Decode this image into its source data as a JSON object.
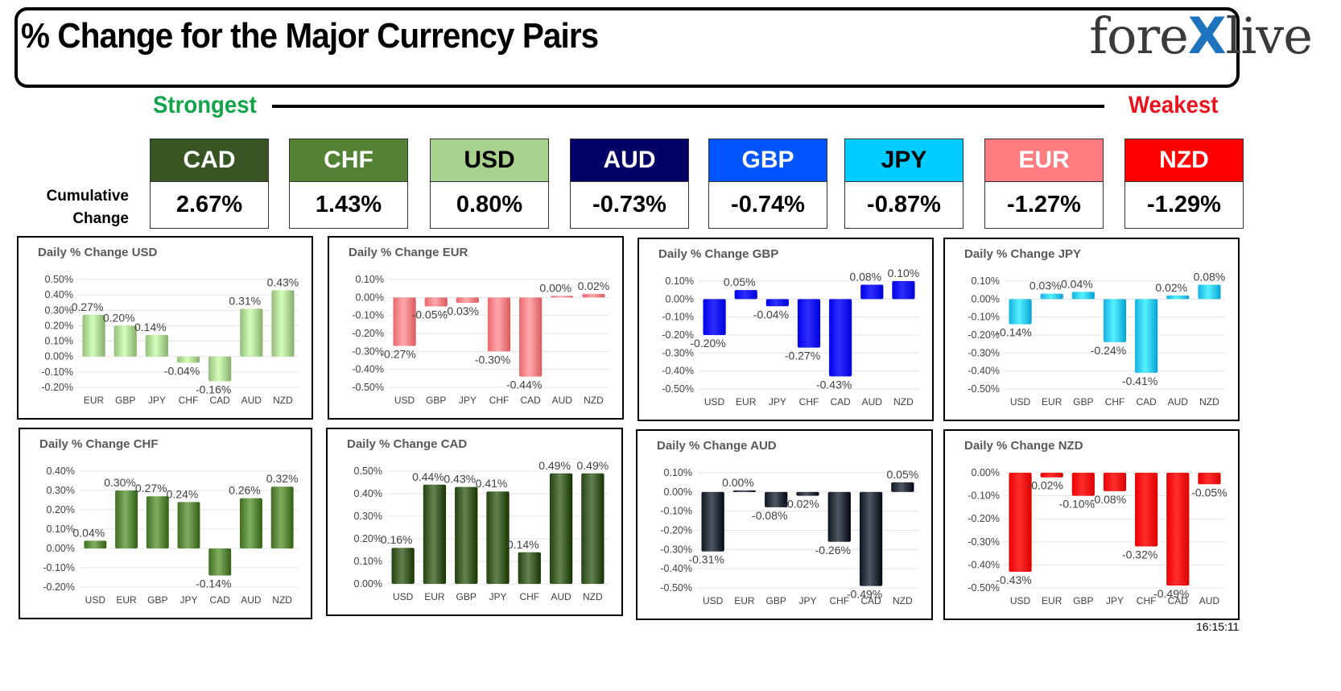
{
  "header": {
    "title": "% Change for the Major Currency Pairs",
    "logo_left": "fore",
    "logo_x": "X",
    "logo_right": "live"
  },
  "strength": {
    "strongest": "Strongest",
    "weakest": "Weakest"
  },
  "cumulative_label_line1": "Cumulative",
  "cumulative_label_line2": "Change",
  "currencies": [
    {
      "code": "CAD",
      "value": "2.67%",
      "bg": "#375623",
      "fg": "#ffffff"
    },
    {
      "code": "CHF",
      "value": "1.43%",
      "bg": "#548235",
      "fg": "#ffffff"
    },
    {
      "code": "USD",
      "value": "0.80%",
      "bg": "#a9d18e",
      "fg": "#000000"
    },
    {
      "code": "AUD",
      "value": "-0.73%",
      "bg": "#000066",
      "fg": "#ffffff"
    },
    {
      "code": "GBP",
      "value": "-0.74%",
      "bg": "#0055ff",
      "fg": "#ffffff"
    },
    {
      "code": "JPY",
      "value": "-0.87%",
      "bg": "#00ccff",
      "fg": "#000000"
    },
    {
      "code": "EUR",
      "value": "-1.27%",
      "bg": "#ff7c80",
      "fg": "#ffffff"
    },
    {
      "code": "NZD",
      "value": "-1.29%",
      "bg": "#ff0000",
      "fg": "#ffffff"
    }
  ],
  "timestamp": "16:15:11",
  "chart_data": [
    {
      "type": "bar",
      "title": "Daily % Change USD",
      "color": "#a9d18e",
      "categories": [
        "EUR",
        "GBP",
        "JPY",
        "CHF",
        "CAD",
        "AUD",
        "NZD"
      ],
      "values": [
        0.27,
        0.2,
        0.14,
        -0.04,
        -0.16,
        0.31,
        0.43
      ],
      "ylim": [
        -0.2,
        0.5
      ],
      "yticks": [
        "0.50%",
        "0.40%",
        "0.30%",
        "0.20%",
        "0.10%",
        "0.00%",
        "-0.10%",
        "-0.20%"
      ],
      "labels": [
        "0.27%",
        "0.20%",
        "0.14%",
        "-0.04%",
        "-0.16%",
        "0.31%",
        "0.43%"
      ]
    },
    {
      "type": "bar",
      "title": "Daily % Change EUR",
      "color": "#ff7c80",
      "categories": [
        "USD",
        "GBP",
        "JPY",
        "CHF",
        "CAD",
        "AUD",
        "NZD"
      ],
      "values": [
        -0.27,
        -0.05,
        -0.03,
        -0.3,
        -0.44,
        0.0,
        0.02
      ],
      "ylim": [
        -0.5,
        0.1
      ],
      "yticks": [
        "0.10%",
        "0.00%",
        "-0.10%",
        "-0.20%",
        "-0.30%",
        "-0.40%",
        "-0.50%"
      ],
      "labels": [
        "-0.27%",
        "-0.05%",
        "-0.03%",
        "-0.30%",
        "-0.44%",
        "0.00%",
        "0.02%"
      ]
    },
    {
      "type": "bar",
      "title": "Daily % Change GBP",
      "color": "#0000ff",
      "categories": [
        "USD",
        "EUR",
        "JPY",
        "CHF",
        "CAD",
        "AUD",
        "NZD"
      ],
      "values": [
        -0.2,
        0.05,
        -0.04,
        -0.27,
        -0.43,
        0.08,
        0.1
      ],
      "ylim": [
        -0.5,
        0.1
      ],
      "yticks": [
        "0.10%",
        "0.00%",
        "-0.10%",
        "-0.20%",
        "-0.30%",
        "-0.40%",
        "-0.50%"
      ],
      "labels": [
        "-0.20%",
        "0.05%",
        "-0.04%",
        "-0.27%",
        "-0.43%",
        "0.08%",
        "0.10%"
      ]
    },
    {
      "type": "bar",
      "title": "Daily % Change JPY",
      "color": "#29c5f6",
      "categories": [
        "USD",
        "EUR",
        "GBP",
        "CHF",
        "CAD",
        "AUD",
        "NZD"
      ],
      "values": [
        -0.14,
        0.03,
        0.04,
        -0.24,
        -0.41,
        0.02,
        0.08
      ],
      "ylim": [
        -0.5,
        0.1
      ],
      "yticks": [
        "0.10%",
        "0.00%",
        "-0.10%",
        "-0.20%",
        "-0.30%",
        "-0.40%",
        "-0.50%"
      ],
      "labels": [
        "-0.14%",
        "0.03%",
        "0.04%",
        "-0.24%",
        "-0.41%",
        "0.02%",
        "0.08%"
      ]
    },
    {
      "type": "bar",
      "title": "Daily % Change CHF",
      "color": "#548235",
      "categories": [
        "USD",
        "EUR",
        "GBP",
        "JPY",
        "CAD",
        "AUD",
        "NZD"
      ],
      "values": [
        0.04,
        0.3,
        0.27,
        0.24,
        -0.14,
        0.26,
        0.32
      ],
      "ylim": [
        -0.2,
        0.4
      ],
      "yticks": [
        "0.40%",
        "0.30%",
        "0.20%",
        "0.10%",
        "0.00%",
        "-0.10%",
        "-0.20%"
      ],
      "labels": [
        "0.04%",
        "0.30%",
        "0.27%",
        "0.24%",
        "-0.14%",
        "0.26%",
        "0.32%"
      ]
    },
    {
      "type": "bar",
      "title": "Daily % Change CAD",
      "color": "#375623",
      "categories": [
        "USD",
        "EUR",
        "GBP",
        "JPY",
        "CHF",
        "AUD",
        "NZD"
      ],
      "values": [
        0.16,
        0.44,
        0.43,
        0.41,
        0.14,
        0.49,
        0.49
      ],
      "ylim": [
        0.0,
        0.5
      ],
      "yticks": [
        "0.50%",
        "0.40%",
        "0.30%",
        "0.20%",
        "0.10%",
        "0.00%"
      ],
      "labels": [
        "0.16%",
        "0.44%",
        "0.43%",
        "0.41%",
        "0.14%",
        "0.49%",
        "0.49%"
      ]
    },
    {
      "type": "bar",
      "title": "Daily % Change AUD",
      "color": "#222a35",
      "categories": [
        "USD",
        "EUR",
        "GBP",
        "JPY",
        "CHF",
        "CAD",
        "NZD"
      ],
      "values": [
        -0.31,
        0.0,
        -0.08,
        -0.02,
        -0.26,
        -0.49,
        0.05
      ],
      "ylim": [
        -0.5,
        0.1
      ],
      "yticks": [
        "0.10%",
        "0.00%",
        "-0.10%",
        "-0.20%",
        "-0.30%",
        "-0.40%",
        "-0.50%"
      ],
      "labels": [
        "-0.31%",
        "0.00%",
        "-0.08%",
        "-0.02%",
        "-0.26%",
        "-0.49%",
        "0.05%"
      ]
    },
    {
      "type": "bar",
      "title": "Daily % Change NZD",
      "color": "#ff0000",
      "categories": [
        "USD",
        "EUR",
        "GBP",
        "JPY",
        "CHF",
        "CAD",
        "AUD"
      ],
      "values": [
        -0.43,
        -0.02,
        -0.1,
        -0.08,
        -0.32,
        -0.49,
        -0.05
      ],
      "ylim": [
        -0.5,
        0.0
      ],
      "yticks": [
        "0.00%",
        "-0.10%",
        "-0.20%",
        "-0.30%",
        "-0.40%",
        "-0.50%"
      ],
      "labels": [
        "-0.43%",
        "-0.02%",
        "-0.10%",
        "-0.08%",
        "-0.32%",
        "-0.49%",
        "-0.05%"
      ]
    }
  ]
}
